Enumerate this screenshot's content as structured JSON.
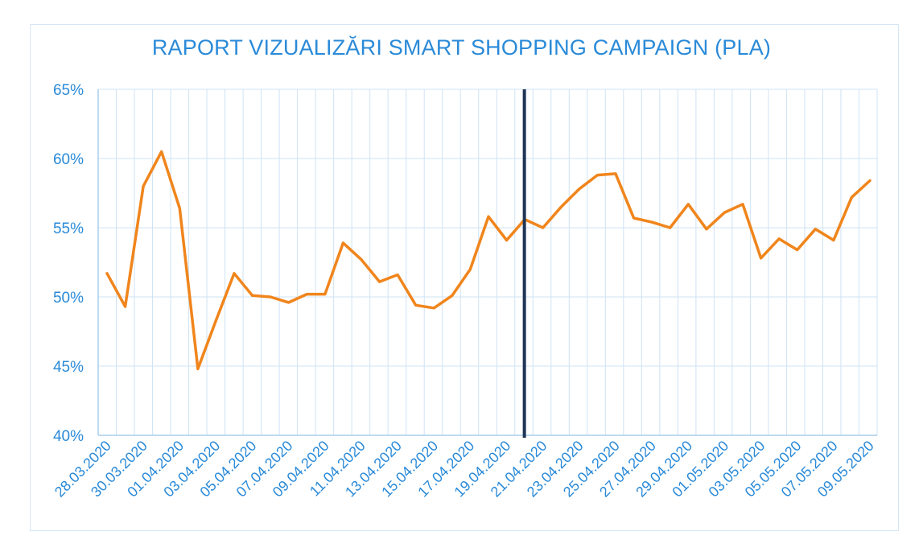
{
  "chart_data": {
    "type": "line",
    "title": "RAPORT VIZUALIZĂRI SMART SHOPPING CAMPAIGN (PLA)",
    "xlabel": "",
    "ylabel": "",
    "ylim": [
      40,
      65
    ],
    "yticks": [
      "40%",
      "45%",
      "50%",
      "55%",
      "60%",
      "65%"
    ],
    "ytick_values": [
      40,
      45,
      50,
      55,
      60,
      65
    ],
    "grid": "vertical and horizontal",
    "x_tick_labels": [
      "28.03.2020",
      "30.03.2020",
      "01.04.2020",
      "03.04.2020",
      "05.04.2020",
      "07.04.2020",
      "09.04.2020",
      "11.04.2020",
      "13.04.2020",
      "15.04.2020",
      "17.04.2020",
      "19.04.2020",
      "21.04.2020",
      "23.04.2020",
      "25.04.2020",
      "27.04.2020",
      "29.04.2020",
      "01.05.2020",
      "03.05.2020",
      "05.05.2020",
      "07.05.2020",
      "09.05.2020"
    ],
    "x": [
      "28.03.2020",
      "29.03.2020",
      "30.03.2020",
      "31.03.2020",
      "01.04.2020",
      "02.04.2020",
      "03.04.2020",
      "04.04.2020",
      "05.04.2020",
      "06.04.2020",
      "07.04.2020",
      "08.04.2020",
      "09.04.2020",
      "10.04.2020",
      "11.04.2020",
      "12.04.2020",
      "13.04.2020",
      "14.04.2020",
      "15.04.2020",
      "16.04.2020",
      "17.04.2020",
      "18.04.2020",
      "19.04.2020",
      "20.04.2020",
      "21.04.2020",
      "22.04.2020",
      "23.04.2020",
      "24.04.2020",
      "25.04.2020",
      "26.04.2020",
      "27.04.2020",
      "28.04.2020",
      "29.04.2020",
      "30.04.2020",
      "01.05.2020",
      "02.05.2020",
      "03.05.2020",
      "04.05.2020",
      "05.05.2020",
      "06.05.2020",
      "07.05.2020",
      "08.05.2020",
      "09.05.2020"
    ],
    "series": [
      {
        "values": [
          51.7,
          49.3,
          58.0,
          60.5,
          56.4,
          44.8,
          48.3,
          51.7,
          50.1,
          50.0,
          49.6,
          50.2,
          50.2,
          53.9,
          52.7,
          51.1,
          51.6,
          49.4,
          49.2,
          50.1,
          52.0,
          55.8,
          54.1,
          55.6,
          55.0,
          56.5,
          57.8,
          58.8,
          58.9,
          55.7,
          55.4,
          55.0,
          56.7,
          54.9,
          56.1,
          56.7,
          52.8,
          54.2,
          53.4,
          54.9,
          54.1,
          57.2,
          58.4
        ],
        "color": "#f0851c"
      }
    ],
    "marker_line": {
      "at": "20.04.2020",
      "color": "#1f3556"
    },
    "colors": {
      "text": "#2a8ad8",
      "grid": "#cfe3f5",
      "axis": "#a8cdeb",
      "frame": "#d6e6f5"
    }
  }
}
